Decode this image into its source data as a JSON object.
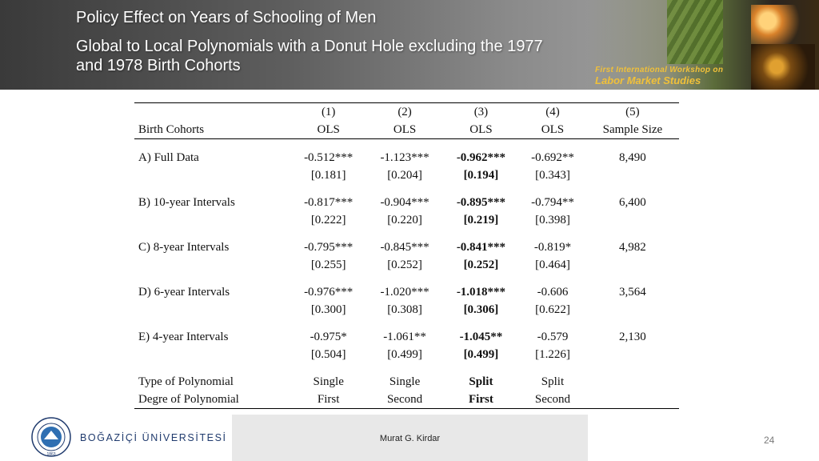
{
  "header": {
    "title_line1": "Policy Effect on Years of Schooling of Men",
    "title_line2": "Global to Local Polynomials with a Donut Hole excluding the 1977",
    "title_line3": "and 1978 Birth Cohorts",
    "banner_small": "First International Workshop on",
    "banner_large": "Labor Market Studies"
  },
  "table": {
    "col_numbers": [
      "(1)",
      "(2)",
      "(3)",
      "(4)",
      "(5)"
    ],
    "row_header": "Birth Cohorts",
    "col_methods": [
      "OLS",
      "OLS",
      "OLS",
      "OLS",
      "Sample Size"
    ],
    "rows": [
      {
        "label": "A) Full Data",
        "coef": [
          "-0.512***",
          "-1.123***",
          "-0.962***",
          "-0.692**",
          "8,490"
        ],
        "se": [
          "[0.181]",
          "[0.204]",
          "[0.194]",
          "[0.343]"
        ]
      },
      {
        "label": "B) 10-year Intervals",
        "coef": [
          "-0.817***",
          "-0.904***",
          "-0.895***",
          "-0.794**",
          "6,400"
        ],
        "se": [
          "[0.222]",
          "[0.220]",
          "[0.219]",
          "[0.398]"
        ]
      },
      {
        "label": "C) 8-year Intervals",
        "coef": [
          "-0.795***",
          "-0.845***",
          "-0.841***",
          "-0.819*",
          "4,982"
        ],
        "se": [
          "[0.255]",
          "[0.252]",
          "[0.252]",
          "[0.464]"
        ]
      },
      {
        "label": "D) 6-year Intervals",
        "coef": [
          "-0.976***",
          "-1.020***",
          "-1.018***",
          "-0.606",
          "3,564"
        ],
        "se": [
          "[0.300]",
          "[0.308]",
          "[0.306]",
          "[0.622]"
        ]
      },
      {
        "label": "E) 4-year Intervals",
        "coef": [
          "-0.975*",
          "-1.061**",
          "-1.045**",
          "-0.579",
          "2,130"
        ],
        "se": [
          "[0.504]",
          "[0.499]",
          "[0.499]",
          "[1.226]"
        ]
      }
    ],
    "poly_type_label": "Type of Polynomial",
    "poly_type": [
      "Single",
      "Single",
      "Split",
      "Split"
    ],
    "poly_degree_label": "Degre of Polynomial",
    "poly_degree": [
      "First",
      "Second",
      "First",
      "Second"
    ]
  },
  "footer": {
    "university": "BOĞAZİÇİ ÜNİVERSİTESİ",
    "logo_year": "1863",
    "author": "Murat G. Kirdar",
    "page_number": "24"
  },
  "colors": {
    "header_dark": "#3a3a3a",
    "header_light": "#b4b4b4",
    "university_blue": "#1f3a6d",
    "footer_gray": "#e8e8e8"
  }
}
